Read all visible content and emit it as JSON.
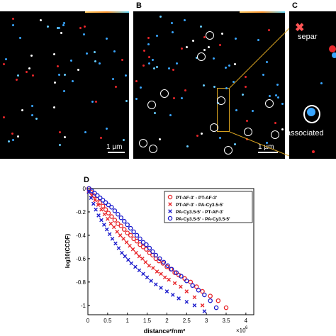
{
  "panels": {
    "b_label": "B",
    "c_label": "C",
    "d_label": "D",
    "scale_a": "1 µm",
    "scale_b": "1 µm",
    "c_text_top": "separ",
    "c_text_bottom": "associated"
  },
  "colors": {
    "red": "#e8262a",
    "blue": "#1a1acc",
    "cyan_spot": "#39a6ff",
    "orange_box": "#d4a020"
  },
  "icons": {
    "marker_circle": "circle-marker-icon",
    "marker_x": "x-marker-icon"
  },
  "chart_data": {
    "type": "scatter",
    "xlabel": "distance²/nm²",
    "ylabel": "log10(CCDF)",
    "x_multiplier": "×10",
    "x_multiplier_exp": "6",
    "xlim": [
      0,
      4.2
    ],
    "ylim": [
      -1.08,
      0
    ],
    "xticks": [
      0,
      0.5,
      1,
      1.5,
      2,
      2.5,
      3,
      3.5,
      4
    ],
    "xtick_labels": [
      "0",
      "0.5",
      "1",
      "1.5",
      "2",
      "2.5",
      "3",
      "3.5",
      "4"
    ],
    "yticks": [
      0,
      -0.2,
      -0.4,
      -0.6,
      -0.8,
      -1
    ],
    "ytick_labels": [
      "0",
      "-0.2",
      "-0.4",
      "-0.6",
      "-0.8",
      "-1"
    ],
    "legend_position": "top-right",
    "series": [
      {
        "name": "PT-AF-3' - PT-AF-3'",
        "marker": "circle",
        "color": "#e8262a",
        "x": [
          0.02,
          0.08,
          0.15,
          0.22,
          0.3,
          0.38,
          0.45,
          0.52,
          0.6,
          0.68,
          0.76,
          0.84,
          0.92,
          1.0,
          1.08,
          1.16,
          1.24,
          1.32,
          1.4,
          1.48,
          1.56,
          1.64,
          1.72,
          1.8,
          1.9,
          2.0,
          2.1,
          2.2,
          2.3,
          2.45,
          2.6,
          2.75,
          2.9,
          3.1,
          3.3,
          3.5
        ],
        "y": [
          0,
          -0.03,
          -0.06,
          -0.09,
          -0.12,
          -0.15,
          -0.18,
          -0.21,
          -0.24,
          -0.27,
          -0.3,
          -0.32,
          -0.35,
          -0.38,
          -0.4,
          -0.43,
          -0.45,
          -0.48,
          -0.5,
          -0.52,
          -0.55,
          -0.57,
          -0.6,
          -0.62,
          -0.64,
          -0.67,
          -0.69,
          -0.72,
          -0.74,
          -0.77,
          -0.8,
          -0.84,
          -0.88,
          -0.92,
          -0.96,
          -1.02
        ]
      },
      {
        "name": "PT-AF-3' - PA-Cy3.5-5'",
        "marker": "x",
        "color": "#e8262a",
        "x": [
          0.02,
          0.1,
          0.18,
          0.26,
          0.34,
          0.42,
          0.5,
          0.58,
          0.66,
          0.74,
          0.82,
          0.9,
          0.98,
          1.06,
          1.14,
          1.22,
          1.3,
          1.38,
          1.46,
          1.55,
          1.65,
          1.75,
          1.85,
          1.95,
          2.05,
          2.2,
          2.35,
          2.5,
          2.7,
          2.9
        ],
        "y": [
          -0.02,
          -0.06,
          -0.1,
          -0.14,
          -0.18,
          -0.22,
          -0.26,
          -0.3,
          -0.33,
          -0.37,
          -0.4,
          -0.43,
          -0.46,
          -0.49,
          -0.52,
          -0.55,
          -0.58,
          -0.6,
          -0.63,
          -0.66,
          -0.68,
          -0.71,
          -0.73,
          -0.76,
          -0.78,
          -0.81,
          -0.84,
          -0.88,
          -0.93,
          -1.0
        ]
      },
      {
        "name": "PA-Cy3.5-5' - PT-AF-3'",
        "marker": "x",
        "color": "#1a1acc",
        "x": [
          0.02,
          0.08,
          0.14,
          0.2,
          0.27,
          0.34,
          0.41,
          0.48,
          0.55,
          0.62,
          0.7,
          0.78,
          0.86,
          0.94,
          1.02,
          1.1,
          1.2,
          1.3,
          1.4,
          1.5,
          1.6,
          1.72,
          1.85,
          2.0,
          2.15,
          2.3,
          2.5,
          2.7,
          2.95
        ],
        "y": [
          -0.03,
          -0.08,
          -0.13,
          -0.18,
          -0.23,
          -0.27,
          -0.31,
          -0.35,
          -0.39,
          -0.43,
          -0.47,
          -0.51,
          -0.55,
          -0.58,
          -0.61,
          -0.64,
          -0.67,
          -0.7,
          -0.73,
          -0.76,
          -0.79,
          -0.82,
          -0.85,
          -0.88,
          -0.91,
          -0.94,
          -0.97,
          -1.0,
          -1.05
        ]
      },
      {
        "name": "PA-Cy3.5-5' - PA-Cy3.5-5'",
        "marker": "circle",
        "color": "#1a1acc",
        "x": [
          0.03,
          0.1,
          0.17,
          0.24,
          0.31,
          0.38,
          0.45,
          0.52,
          0.6,
          0.68,
          0.76,
          0.84,
          0.92,
          1.0,
          1.08,
          1.16,
          1.24,
          1.32,
          1.4,
          1.48,
          1.56,
          1.64,
          1.72,
          1.82,
          1.92,
          2.02,
          2.12,
          2.24,
          2.36,
          2.5,
          2.65,
          2.8,
          2.95,
          3.1,
          3.25
        ],
        "y": [
          0,
          -0.02,
          -0.04,
          -0.06,
          -0.08,
          -0.1,
          -0.12,
          -0.14,
          -0.16,
          -0.19,
          -0.22,
          -0.25,
          -0.28,
          -0.31,
          -0.34,
          -0.37,
          -0.4,
          -0.43,
          -0.46,
          -0.48,
          -0.51,
          -0.54,
          -0.57,
          -0.6,
          -0.63,
          -0.66,
          -0.69,
          -0.72,
          -0.75,
          -0.79,
          -0.83,
          -0.87,
          -0.91,
          -0.96,
          -1.02
        ]
      }
    ]
  }
}
